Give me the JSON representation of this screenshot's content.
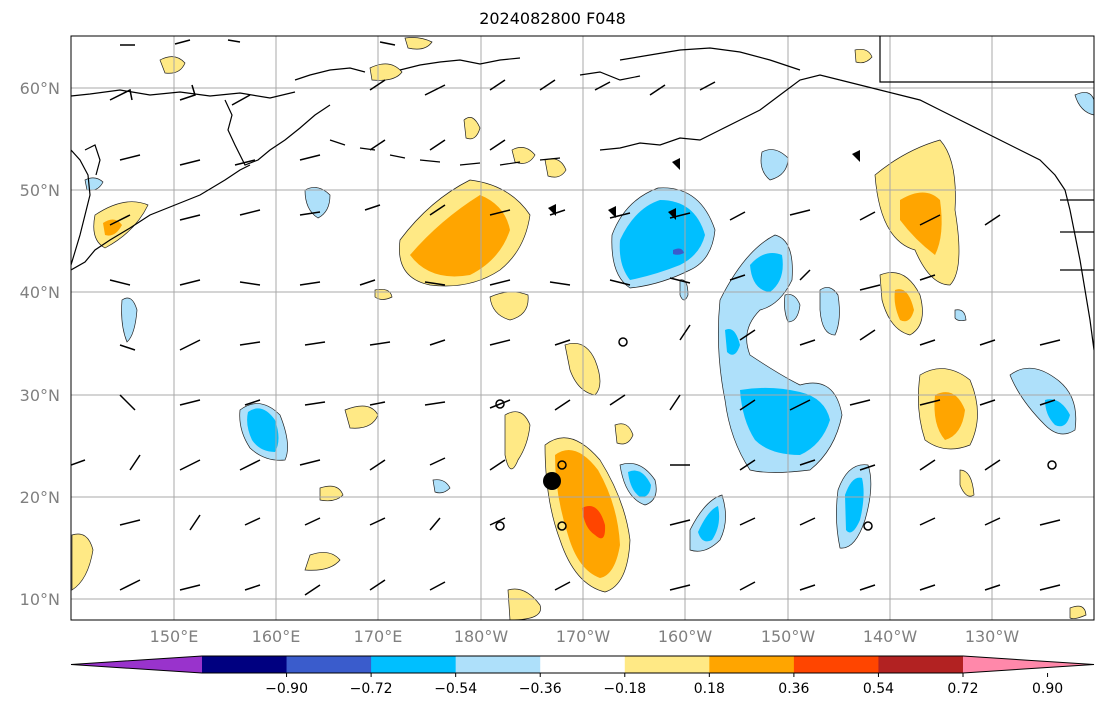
{
  "title": "2024082800 F048",
  "map": {
    "lat_labels": [
      "60°N",
      "50°N",
      "40°N",
      "30°N",
      "20°N",
      "10°N"
    ],
    "lon_labels": [
      "150°E",
      "160°E",
      "170°E",
      "180°W",
      "170°W",
      "160°W",
      "150°W",
      "140°W",
      "130°W"
    ],
    "gridlines": true,
    "field_colors": {
      "neg_strong": "#00bfff",
      "neg_weak": "#aee0fa",
      "pos_weak": "#ffe985",
      "pos_mid": "#ffa500",
      "pos_strong": "#ff4500"
    }
  },
  "colorbar": {
    "colors": [
      "#9933cc",
      "#000080",
      "#3a5ccc",
      "#00bfff",
      "#aee0fa",
      "#ffffff",
      "#ffe985",
      "#ffa500",
      "#ff4500",
      "#b22222",
      "#ff88aa"
    ],
    "ticks": [
      "−0.90",
      "−0.72",
      "−0.54",
      "−0.36",
      "−0.18",
      "0.18",
      "0.36",
      "0.54",
      "0.72",
      "0.90"
    ],
    "extend": "both"
  }
}
